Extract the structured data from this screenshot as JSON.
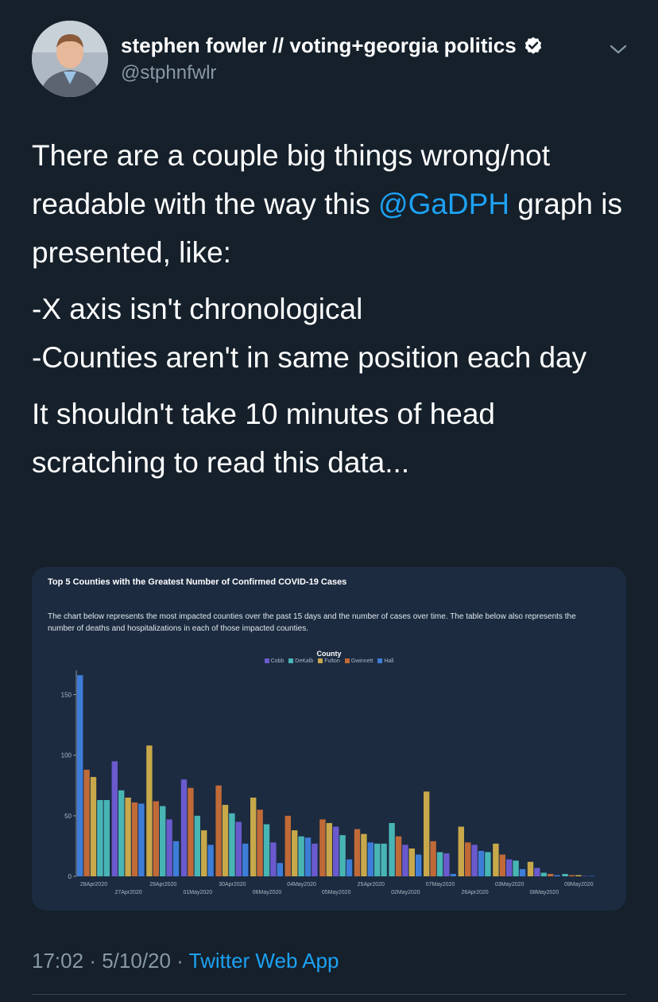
{
  "tweet": {
    "author_name": "stephen fowler // voting+georgia politics",
    "handle": "@stphnfwlr",
    "text_p1_before": "There are a couple big things wrong/not readable with the way this ",
    "mention": "@GaDPH",
    "text_p1_after": " graph is presented, like:",
    "text_line2": "-X axis isn't chronological",
    "text_line3": "-Counties aren't in same position each day",
    "text_p3": "It shouldn't take 10 minutes of head scratching to read this data...",
    "time": "17:02",
    "date": "5/10/20",
    "source": "Twitter Web App",
    "separator": "·",
    "icons": {
      "avatar": "avatar-photo",
      "verified": "verified-badge-icon",
      "menu": "chevron-down-icon"
    }
  },
  "media": {
    "title": "Top 5 Counties with the Greatest Number of Confirmed COVID-19 Cases",
    "description": "The chart below represents the most impacted counties over the past 15 days and the number of cases over time. The table below also represents the number of deaths and hospitalizations in each of those impacted counties.",
    "legend_title": "County"
  },
  "colors": {
    "background": "#15202b",
    "link": "#1da1f2",
    "muted": "#8899a6",
    "card": "#1c2b40"
  },
  "chart_data": {
    "type": "bar",
    "title": "",
    "xlabel": "",
    "ylabel": "",
    "ylim": [
      0,
      170
    ],
    "yticks": [
      0,
      50,
      100,
      150
    ],
    "legend_placement": "top-center",
    "categories": [
      "28Apr2020",
      "27Apr2020",
      "29Apr2020",
      "01May2020",
      "30Apr2020",
      "06May2020",
      "04May2020",
      "05May2020",
      "25Apr2020",
      "02May2020",
      "07May2020",
      "26Apr2020",
      "03May2020",
      "08May2020",
      "09May2020"
    ],
    "series": [
      {
        "name": "Cobb",
        "color": "#6a5acd"
      },
      {
        "name": "DeKalb",
        "color": "#48b5b5"
      },
      {
        "name": "Fulton",
        "color": "#c8a84a"
      },
      {
        "name": "Gwinnett",
        "color": "#c06a38"
      },
      {
        "name": "Hall",
        "color": "#3d7dd8"
      }
    ],
    "groups": [
      {
        "category": "28Apr2020",
        "bars": [
          {
            "county": "Hall",
            "value": 166
          },
          {
            "county": "Gwinnett",
            "value": 88
          },
          {
            "county": "Fulton",
            "value": 82
          },
          {
            "county": "DeKalb",
            "value": 63
          },
          {
            "county": "DeKalb",
            "value": 63
          }
        ]
      },
      {
        "category": "27Apr2020",
        "bars": [
          {
            "county": "Cobb",
            "value": 95
          },
          {
            "county": "DeKalb",
            "value": 71
          },
          {
            "county": "Fulton",
            "value": 65
          },
          {
            "county": "Gwinnett",
            "value": 61
          },
          {
            "county": "Hall",
            "value": 60
          }
        ]
      },
      {
        "category": "29Apr2020",
        "bars": [
          {
            "county": "Fulton",
            "value": 108
          },
          {
            "county": "Gwinnett",
            "value": 62
          },
          {
            "county": "DeKalb",
            "value": 58
          },
          {
            "county": "Cobb",
            "value": 47
          },
          {
            "county": "Hall",
            "value": 29
          }
        ]
      },
      {
        "category": "01May2020",
        "bars": [
          {
            "county": "Cobb",
            "value": 80
          },
          {
            "county": "Gwinnett",
            "value": 73
          },
          {
            "county": "DeKalb",
            "value": 50
          },
          {
            "county": "Fulton",
            "value": 38
          },
          {
            "county": "Hall",
            "value": 26
          }
        ]
      },
      {
        "category": "30Apr2020",
        "bars": [
          {
            "county": "Gwinnett",
            "value": 75
          },
          {
            "county": "Fulton",
            "value": 59
          },
          {
            "county": "DeKalb",
            "value": 52
          },
          {
            "county": "Cobb",
            "value": 45
          },
          {
            "county": "Hall",
            "value": 27
          }
        ]
      },
      {
        "category": "06May2020",
        "bars": [
          {
            "county": "Fulton",
            "value": 65
          },
          {
            "county": "Gwinnett",
            "value": 55
          },
          {
            "county": "DeKalb",
            "value": 43
          },
          {
            "county": "Cobb",
            "value": 28
          },
          {
            "county": "Hall",
            "value": 11
          }
        ]
      },
      {
        "category": "04May2020",
        "bars": [
          {
            "county": "Gwinnett",
            "value": 50
          },
          {
            "county": "Fulton",
            "value": 38
          },
          {
            "county": "DeKalb",
            "value": 33
          },
          {
            "county": "Hall",
            "value": 32
          },
          {
            "county": "Cobb",
            "value": 27
          }
        ]
      },
      {
        "category": "05May2020",
        "bars": [
          {
            "county": "Gwinnett",
            "value": 47
          },
          {
            "county": "Fulton",
            "value": 44
          },
          {
            "county": "Cobb",
            "value": 41
          },
          {
            "county": "DeKalb",
            "value": 34
          },
          {
            "county": "Hall",
            "value": 14
          }
        ]
      },
      {
        "category": "25Apr2020",
        "bars": [
          {
            "county": "Gwinnett",
            "value": 39
          },
          {
            "county": "Fulton",
            "value": 35
          },
          {
            "county": "Hall",
            "value": 28
          },
          {
            "county": "DeKalb",
            "value": 27
          },
          {
            "county": "DeKalb",
            "value": 27
          }
        ]
      },
      {
        "category": "02May2020",
        "bars": [
          {
            "county": "DeKalb",
            "value": 44
          },
          {
            "county": "Gwinnett",
            "value": 33
          },
          {
            "county": "Cobb",
            "value": 26
          },
          {
            "county": "Fulton",
            "value": 23
          },
          {
            "county": "Hall",
            "value": 18
          }
        ]
      },
      {
        "category": "07May2020",
        "bars": [
          {
            "county": "Fulton",
            "value": 70
          },
          {
            "county": "Gwinnett",
            "value": 29
          },
          {
            "county": "DeKalb",
            "value": 20
          },
          {
            "county": "Cobb",
            "value": 19
          },
          {
            "county": "Hall",
            "value": 2
          }
        ]
      },
      {
        "category": "26Apr2020",
        "bars": [
          {
            "county": "Fulton",
            "value": 41
          },
          {
            "county": "Gwinnett",
            "value": 28
          },
          {
            "county": "Cobb",
            "value": 26
          },
          {
            "county": "Hall",
            "value": 21
          },
          {
            "county": "DeKalb",
            "value": 20
          }
        ]
      },
      {
        "category": "03May2020",
        "bars": [
          {
            "county": "Fulton",
            "value": 27
          },
          {
            "county": "Gwinnett",
            "value": 18
          },
          {
            "county": "Cobb",
            "value": 14
          },
          {
            "county": "DeKalb",
            "value": 13
          },
          {
            "county": "Hall",
            "value": 6
          }
        ]
      },
      {
        "category": "08May2020",
        "bars": [
          {
            "county": "Fulton",
            "value": 12
          },
          {
            "county": "Cobb",
            "value": 7
          },
          {
            "county": "DeKalb",
            "value": 3
          },
          {
            "county": "Gwinnett",
            "value": 2
          },
          {
            "county": "Hall",
            "value": 1
          }
        ]
      },
      {
        "category": "09May2020",
        "bars": [
          {
            "county": "DeKalb",
            "value": 2
          },
          {
            "county": "Gwinnett",
            "value": 1
          },
          {
            "county": "Fulton",
            "value": 1
          },
          {
            "county": "Cobb",
            "value": 0
          },
          {
            "county": "Hall",
            "value": 0
          }
        ]
      }
    ]
  }
}
